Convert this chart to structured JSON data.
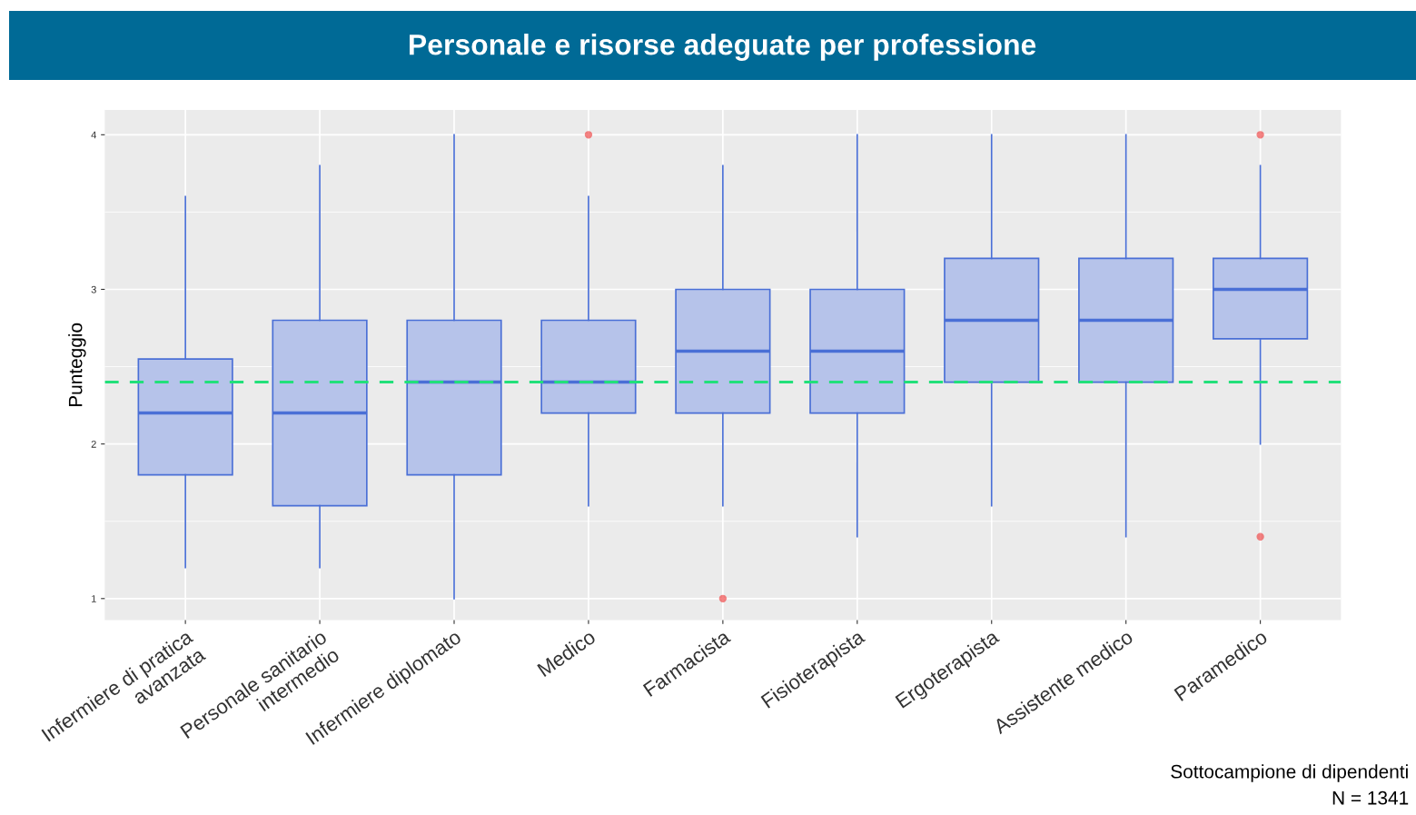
{
  "chart_data": {
    "type": "box",
    "title": "Personale e risorse adeguate per professione",
    "ylabel": "Punteggio",
    "categories": [
      "Infermiere di pratica\navanzata",
      "Personale sanitario\nintermedio",
      "Infermiere diplomato",
      "Medico",
      "Farmacista",
      "Fisioterapista",
      "Ergoterapista",
      "Assistente medico",
      "Paramedico"
    ],
    "series": [
      {
        "color": "#4a6fd6",
        "boxes": [
          {
            "low": 1.2,
            "q1": 1.8,
            "median": 2.2,
            "q3": 2.55,
            "high": 3.6
          },
          {
            "low": 1.2,
            "q1": 1.6,
            "median": 2.2,
            "q3": 2.8,
            "high": 3.8
          },
          {
            "low": 1.0,
            "q1": 1.8,
            "median": 2.4,
            "q3": 2.8,
            "high": 4.0
          },
          {
            "low": 1.6,
            "q1": 2.2,
            "median": 2.4,
            "q3": 2.8,
            "high": 3.6,
            "outliers": [
              4.0
            ]
          },
          {
            "low": 1.6,
            "q1": 2.2,
            "median": 2.6,
            "q3": 3.0,
            "high": 3.8,
            "outliers": [
              1.0
            ]
          },
          {
            "low": 1.4,
            "q1": 2.2,
            "median": 2.6,
            "q3": 3.0,
            "high": 4.0
          },
          {
            "low": 1.6,
            "q1": 2.4,
            "median": 2.8,
            "q3": 3.2,
            "high": 4.0
          },
          {
            "low": 1.4,
            "q1": 2.4,
            "median": 2.8,
            "q3": 3.2,
            "high": 4.0
          },
          {
            "low": 2.0,
            "q1": 2.68,
            "median": 3.0,
            "q3": 3.2,
            "high": 3.8,
            "outliers": [
              4.0,
              1.4
            ]
          }
        ]
      }
    ],
    "ylim": [
      0.86,
      4.16
    ],
    "yticks": [
      1,
      2,
      3,
      4
    ],
    "grid": true,
    "ref_lines": [
      {
        "axis": "y",
        "value": 2.4,
        "label": null,
        "color": "#22e07a",
        "line_style": "dashed"
      }
    ],
    "annotations": [
      "Sottocampione di dipendenti",
      "N = 1341"
    ]
  }
}
